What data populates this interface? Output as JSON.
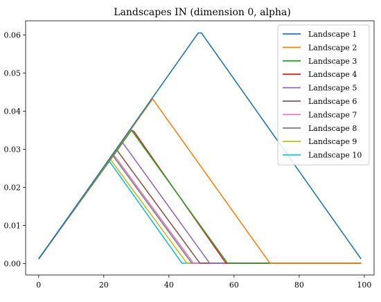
{
  "chart_data": {
    "type": "line",
    "title": "Landscapes IN (dimension 0, alpha)",
    "xlabel": "",
    "ylabel": "",
    "xlim": [
      -4,
      103
    ],
    "ylim": [
      -0.003,
      0.0637
    ],
    "x_ticks": [
      0,
      20,
      40,
      60,
      80,
      100
    ],
    "y_ticks": [
      0.0,
      0.01,
      0.02,
      0.03,
      0.04,
      0.05,
      0.06
    ],
    "x_tick_labels": [
      "0",
      "20",
      "40",
      "60",
      "80",
      "100"
    ],
    "y_tick_labels": [
      "0.00",
      "0.01",
      "0.02",
      "0.03",
      "0.04",
      "0.05",
      "0.06"
    ],
    "grid": false,
    "legend_position": "top-right",
    "series": [
      {
        "name": "Landscape 1",
        "color": "#1f77b4",
        "points": [
          [
            0,
            0.0012
          ],
          [
            49,
            0.0605
          ],
          [
            50,
            0.0605
          ],
          [
            99,
            0.0012
          ]
        ]
      },
      {
        "name": "Landscape 2",
        "color": "#ff7f0e",
        "points": [
          [
            0,
            0.0012
          ],
          [
            35,
            0.0432
          ],
          [
            71,
            0.0001
          ],
          [
            99,
            0.0001
          ]
        ]
      },
      {
        "name": "Landscape 3",
        "color": "#2ca02c",
        "points": [
          [
            0,
            0.0012
          ],
          [
            28.5,
            0.035
          ],
          [
            58,
            0.0001
          ],
          [
            99,
            0.0001
          ]
        ]
      },
      {
        "name": "Landscape 4",
        "color": "#d62728",
        "points": [
          [
            0,
            0.0012
          ],
          [
            28.5,
            0.035
          ],
          [
            29.3,
            0.0346
          ],
          [
            57.5,
            0.0001
          ],
          [
            99,
            0.0001
          ]
        ]
      },
      {
        "name": "Landscape 5",
        "color": "#9467bd",
        "points": [
          [
            0,
            0.0012
          ],
          [
            25.8,
            0.0317
          ],
          [
            52.5,
            0.0001
          ],
          [
            99,
            0.0001
          ]
        ]
      },
      {
        "name": "Landscape 6",
        "color": "#8c564b",
        "points": [
          [
            0,
            0.0012
          ],
          [
            24,
            0.0298
          ],
          [
            49.5,
            0.0001
          ],
          [
            99,
            0.0001
          ]
        ]
      },
      {
        "name": "Landscape 7",
        "color": "#e377c2",
        "points": [
          [
            0,
            0.0012
          ],
          [
            23,
            0.0286
          ],
          [
            47.5,
            0.0001
          ],
          [
            99,
            0.0001
          ]
        ]
      },
      {
        "name": "Landscape 8",
        "color": "#7f7f7f",
        "points": [
          [
            0,
            0.0012
          ],
          [
            22.8,
            0.0283
          ],
          [
            47,
            0.0001
          ],
          [
            99,
            0.0001
          ]
        ]
      },
      {
        "name": "Landscape 9",
        "color": "#bcbd22",
        "points": [
          [
            0,
            0.0012
          ],
          [
            22,
            0.0274
          ],
          [
            45.5,
            0.0001
          ],
          [
            99,
            0.0001
          ]
        ]
      },
      {
        "name": "Landscape 10",
        "color": "#17becf",
        "points": [
          [
            0,
            0.0012
          ],
          [
            21.2,
            0.0267
          ],
          [
            22,
            0.0265
          ],
          [
            44,
            0.0001
          ],
          [
            99,
            0.0001
          ]
        ]
      }
    ]
  }
}
